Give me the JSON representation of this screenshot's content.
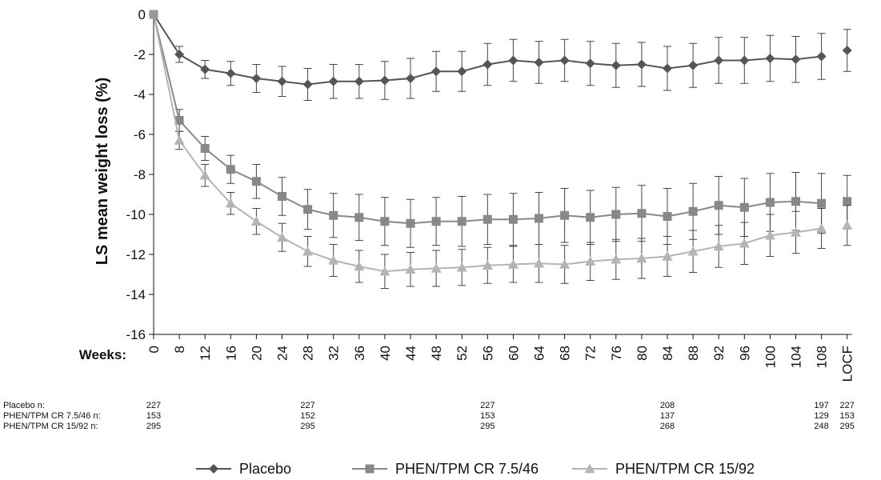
{
  "chart_data": {
    "type": "line",
    "title": "",
    "xlabel": "Weeks:",
    "ylabel": "LS mean weight loss (%)",
    "ylim": [
      -16,
      0
    ],
    "yticks": [
      "0",
      "-2",
      "-4",
      "-6",
      "-8",
      "-10",
      "-12",
      "-14",
      "-16"
    ],
    "categories": [
      "0",
      "8",
      "12",
      "16",
      "20",
      "24",
      "28",
      "32",
      "36",
      "40",
      "44",
      "48",
      "52",
      "56",
      "60",
      "64",
      "68",
      "72",
      "76",
      "80",
      "84",
      "88",
      "92",
      "96",
      "100",
      "104",
      "108",
      "LOCF"
    ],
    "grid": false,
    "legend_position": "bottom",
    "series": [
      {
        "name": "Placebo",
        "marker": "diamond",
        "color": "#555555",
        "values": [
          0,
          -2.0,
          -2.75,
          -2.95,
          -3.2,
          -3.35,
          -3.5,
          -3.35,
          -3.35,
          -3.3,
          -3.2,
          -2.85,
          -2.85,
          -2.5,
          -2.3,
          -2.4,
          -2.3,
          -2.45,
          -2.55,
          -2.5,
          -2.7,
          -2.55,
          -2.3,
          -2.3,
          -2.2,
          -2.25,
          -2.1,
          -1.8
        ],
        "errors": [
          0,
          0.4,
          0.45,
          0.6,
          0.7,
          0.75,
          0.8,
          0.85,
          0.85,
          0.95,
          1.0,
          1.0,
          1.0,
          1.05,
          1.05,
          1.05,
          1.05,
          1.1,
          1.1,
          1.1,
          1.1,
          1.1,
          1.15,
          1.15,
          1.15,
          1.15,
          1.15,
          1.05
        ]
      },
      {
        "name": "PHEN/TPM CR 7.5/46",
        "marker": "square",
        "color": "#888888",
        "values": [
          0,
          -5.3,
          -6.7,
          -7.75,
          -8.35,
          -9.1,
          -9.75,
          -10.05,
          -10.15,
          -10.35,
          -10.45,
          -10.35,
          -10.35,
          -10.25,
          -10.25,
          -10.2,
          -10.05,
          -10.15,
          -10.0,
          -9.95,
          -10.1,
          -9.85,
          -9.55,
          -9.65,
          -9.4,
          -9.35,
          -9.45,
          -9.35
        ],
        "errors": [
          0,
          0.55,
          0.6,
          0.7,
          0.85,
          0.95,
          1.0,
          1.1,
          1.15,
          1.2,
          1.2,
          1.2,
          1.25,
          1.25,
          1.3,
          1.3,
          1.35,
          1.35,
          1.35,
          1.4,
          1.4,
          1.4,
          1.45,
          1.45,
          1.45,
          1.45,
          1.5,
          1.3
        ]
      },
      {
        "name": "PHEN/TPM CR 15/92",
        "marker": "triangle",
        "color": "#b4b4b4",
        "values": [
          0,
          -6.3,
          -8.05,
          -9.45,
          -10.35,
          -11.15,
          -11.85,
          -12.3,
          -12.6,
          -12.85,
          -12.75,
          -12.7,
          -12.65,
          -12.55,
          -12.5,
          -12.45,
          -12.5,
          -12.35,
          -12.25,
          -12.2,
          -12.1,
          -11.85,
          -11.6,
          -11.45,
          -11.05,
          -10.9,
          -10.7,
          -10.55
        ],
        "errors": [
          0,
          0.45,
          0.55,
          0.55,
          0.65,
          0.7,
          0.75,
          0.8,
          0.8,
          0.85,
          0.85,
          0.9,
          0.9,
          0.9,
          0.9,
          0.95,
          0.95,
          0.95,
          1.0,
          1.0,
          1.0,
          1.05,
          1.05,
          1.05,
          1.05,
          1.05,
          1.0,
          1.0
        ]
      }
    ]
  },
  "n_table": {
    "rows": [
      {
        "label": "Placebo n:",
        "values": [
          "227",
          "227",
          "227",
          "208",
          "197",
          "227"
        ]
      },
      {
        "label": "PHEN/TPM CR 7.5/46 n:",
        "values": [
          "153",
          "152",
          "153",
          "137",
          "129",
          "153"
        ]
      },
      {
        "label": "PHEN/TPM CR 15/92 n:",
        "values": [
          "295",
          "295",
          "295",
          "268",
          "248",
          "295"
        ]
      }
    ],
    "columns": [
      "0",
      "28",
      "56",
      "84",
      "108",
      "LOCF"
    ]
  }
}
